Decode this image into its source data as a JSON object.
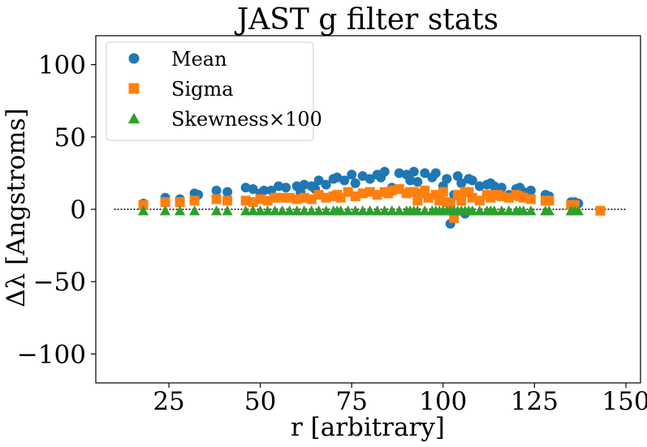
{
  "chart_data": {
    "type": "scatter",
    "title": "JAST g filter stats",
    "xlabel": "r [arbitrary]",
    "ylabel": "Δλ [Angstroms]",
    "xlim": [
      5,
      154
    ],
    "ylim": [
      -120,
      120
    ],
    "xticks": [
      25,
      50,
      75,
      100,
      125,
      150
    ],
    "yticks": [
      100,
      50,
      0,
      -50,
      -100
    ],
    "ytick_labels": [
      "100",
      "50",
      "0",
      "−50",
      "−100"
    ],
    "grid": false,
    "legend_position": "top-left",
    "reference_line": {
      "y": 0,
      "x_range": [
        10,
        150
      ],
      "style": "dotted"
    },
    "series": [
      {
        "name": "Mean",
        "marker": "circle",
        "color": "#1f77b4",
        "x": [
          18,
          24,
          28,
          32,
          33,
          38,
          41,
          46,
          48,
          50,
          51,
          53,
          55,
          57,
          60,
          61,
          62,
          64,
          65,
          66,
          68,
          70,
          71,
          73,
          75,
          76,
          78,
          80,
          82,
          83,
          84,
          86,
          88,
          90,
          91,
          92,
          93,
          95,
          97,
          98,
          99,
          100,
          101,
          102,
          103,
          104,
          105,
          106,
          107,
          108,
          110,
          112,
          113,
          114,
          116,
          118,
          120,
          121,
          122,
          124,
          128,
          129,
          135,
          136,
          137
        ],
        "y": [
          4,
          8,
          7,
          11,
          10,
          13,
          12,
          15,
          14,
          11,
          13,
          13,
          16,
          15,
          16,
          12,
          17,
          16,
          14,
          20,
          17,
          21,
          22,
          20,
          24,
          18,
          23,
          21,
          24,
          22,
          26,
          15,
          25,
          24,
          20,
          26,
          19,
          25,
          22,
          25,
          10,
          16,
          21,
          -10,
          10,
          23,
          18,
          -3,
          21,
          20,
          16,
          17,
          18,
          16,
          15,
          10,
          14,
          15,
          12,
          13,
          10,
          9,
          5,
          5,
          4
        ]
      },
      {
        "name": "Sigma",
        "marker": "square",
        "color": "#ff7f0e",
        "x": [
          18,
          24,
          28,
          32,
          38,
          41,
          46,
          48,
          50,
          52,
          54,
          56,
          58,
          60,
          62,
          64,
          66,
          68,
          70,
          71,
          72,
          74,
          76,
          78,
          80,
          82,
          84,
          85,
          86,
          88,
          90,
          91,
          92,
          93,
          94,
          95,
          96,
          98,
          99,
          100,
          101,
          102,
          103,
          104,
          105,
          106,
          107,
          108,
          110,
          112,
          113,
          114,
          115,
          116,
          118,
          120,
          121,
          122,
          124,
          128,
          129,
          135,
          136,
          143
        ],
        "y": [
          3,
          5,
          5,
          6,
          7,
          6,
          6,
          5,
          7,
          6,
          8,
          8,
          8,
          7,
          8,
          7,
          10,
          8,
          9,
          10,
          8,
          12,
          9,
          11,
          12,
          10,
          12,
          11,
          13,
          14,
          11,
          12,
          12,
          6,
          11,
          13,
          8,
          10,
          6,
          12,
          5,
          4,
          -6,
          10,
          6,
          12,
          12,
          8,
          6,
          10,
          8,
          10,
          10,
          9,
          8,
          10,
          9,
          8,
          7,
          6,
          6,
          3,
          3,
          -1
        ]
      },
      {
        "name": "Skewness×100",
        "marker": "triangle",
        "color": "#2ca02c",
        "x": [
          18,
          24,
          28,
          32,
          38,
          41,
          46,
          48,
          50,
          52,
          54,
          56,
          58,
          60,
          62,
          64,
          66,
          68,
          70,
          71,
          72,
          74,
          76,
          78,
          80,
          82,
          84,
          86,
          88,
          90,
          91,
          92,
          93,
          95,
          97,
          98,
          99,
          100,
          101,
          102,
          103,
          104,
          105,
          106,
          107,
          108,
          110,
          112,
          113,
          114,
          116,
          118,
          120,
          121,
          122,
          124,
          128,
          129,
          135,
          136,
          137
        ],
        "y": [
          -1,
          -1,
          -1,
          -1,
          -1,
          -1,
          -1,
          -1,
          -1,
          -1,
          -1,
          -1,
          -1,
          -1,
          -1,
          -1,
          -1,
          -1,
          -1,
          -1,
          -1,
          -1,
          -1,
          -1,
          -1,
          -1,
          -1,
          -1,
          -1,
          -1,
          -1,
          -1,
          -1,
          -1,
          -1,
          -1,
          -1,
          -1,
          -1,
          -1,
          -1,
          -1,
          -1,
          -1,
          -1,
          -1,
          -1,
          -1,
          -1,
          -1,
          -1,
          -1,
          -1,
          -1,
          -1,
          -1,
          -1,
          -1,
          -1,
          -1,
          -1
        ]
      }
    ]
  }
}
